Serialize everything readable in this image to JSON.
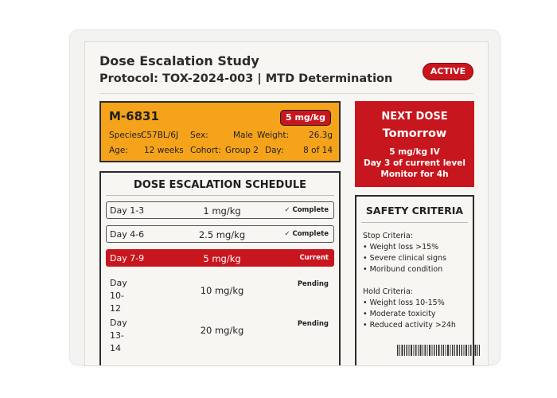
{
  "header": {
    "title": "Dose Escalation Study",
    "subtitle": "Protocol: TOX-2024-003 | MTD Determination",
    "status": "ACTIVE"
  },
  "animal": {
    "id": "M-6831",
    "current_dose": "5 mg/kg",
    "species_label": "Species:",
    "species": "C57BL/6J",
    "sex_label": "Sex:",
    "sex": "Male",
    "weight_label": "Weight:",
    "weight": "26.3g",
    "age_label": "Age:",
    "age": "12 weeks",
    "cohort_label": "Cohort:",
    "cohort": "Group 2",
    "day_label": "Day:",
    "day": "8 of 14"
  },
  "next_dose": {
    "title": "NEXT DOSE",
    "when": "Tomorrow",
    "dose": "5 mg/kg IV",
    "note": "Day 3 of current level",
    "monitor": "Monitor for 4h"
  },
  "schedule": {
    "title": "DOSE ESCALATION SCHEDULE",
    "rows": [
      {
        "day": "Day 1-3",
        "dose": "1 mg/kg",
        "status": "✓ Complete"
      },
      {
        "day": "Day 4-6",
        "dose": "2.5 mg/kg",
        "status": "✓ Complete"
      },
      {
        "day": "Day 7-9",
        "dose": "5 mg/kg",
        "status": "Current"
      },
      {
        "day": "Day 10-12",
        "dose": "10 mg/kg",
        "status": "Pending"
      },
      {
        "day": "Day 13-14",
        "dose": "20 mg/kg",
        "status": "Pending"
      }
    ]
  },
  "safety": {
    "title": "SAFETY CRITERIA",
    "stop_label": "Stop Criteria:",
    "stop": [
      "• Weight loss >15%",
      "• Severe clinical signs",
      "• Moribund condition"
    ],
    "hold_label": "Hold Criteria:",
    "hold": [
      "• Weight loss 10-15%",
      "• Moderate toxicity",
      "• Reduced activity >24h"
    ]
  },
  "colors": {
    "accent_red": "#c8161e",
    "amber": "#f5a31a"
  }
}
